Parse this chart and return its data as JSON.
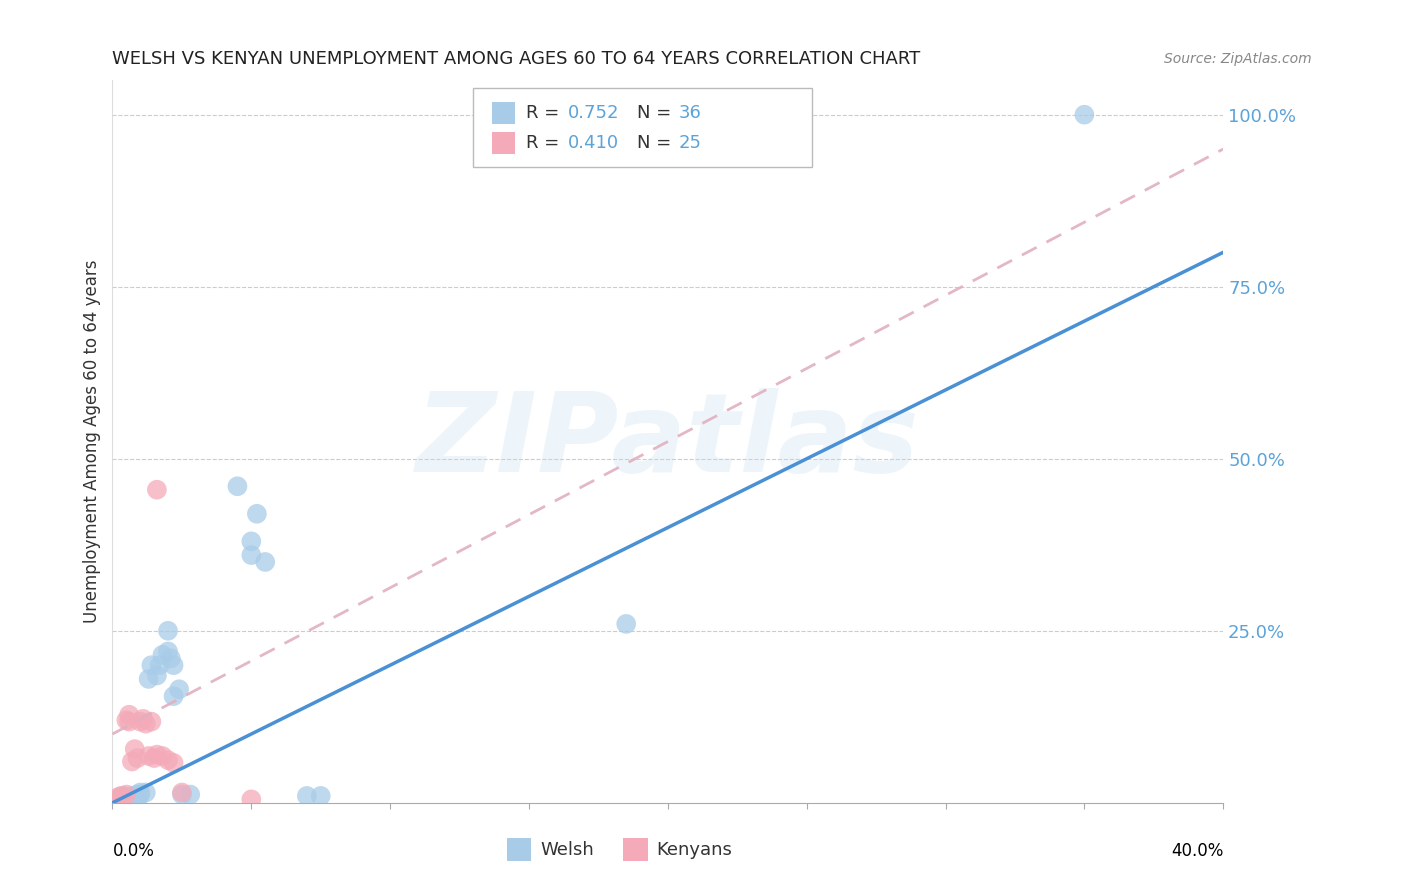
{
  "title": "WELSH VS KENYAN UNEMPLOYMENT AMONG AGES 60 TO 64 YEARS CORRELATION CHART",
  "source": "Source: ZipAtlas.com",
  "ylabel": "Unemployment Among Ages 60 to 64 years",
  "legend_welsh_R": "0.752",
  "legend_welsh_N": "36",
  "legend_kenyan_R": "0.410",
  "legend_kenyan_N": "25",
  "welsh_color": "#a8cce8",
  "kenyan_color": "#f4aab8",
  "welsh_line_color": "#4a90d4",
  "kenyan_line_color": "#e0b0c0",
  "watermark_text": "ZIPatlas",
  "xlim": [
    0.0,
    0.4
  ],
  "ylim": [
    0.0,
    1.05
  ],
  "ytick_values": [
    0.25,
    0.5,
    0.75,
    1.0
  ],
  "ytick_labels": [
    "25.0%",
    "50.0%",
    "75.0%",
    "100.0%"
  ],
  "welsh_line_x": [
    0.0,
    0.4
  ],
  "welsh_line_y": [
    0.0,
    0.8
  ],
  "kenyan_line_x": [
    0.0,
    0.4
  ],
  "kenyan_line_y": [
    0.1,
    0.95
  ],
  "welsh_points": [
    [
      0.002,
      0.005
    ],
    [
      0.003,
      0.008
    ],
    [
      0.004,
      0.003
    ],
    [
      0.004,
      0.01
    ],
    [
      0.005,
      0.004
    ],
    [
      0.005,
      0.008
    ],
    [
      0.006,
      0.006
    ],
    [
      0.007,
      0.01
    ],
    [
      0.008,
      0.008
    ],
    [
      0.009,
      0.004
    ],
    [
      0.009,
      0.012
    ],
    [
      0.01,
      0.015
    ],
    [
      0.01,
      0.012
    ],
    [
      0.012,
      0.015
    ],
    [
      0.013,
      0.18
    ],
    [
      0.014,
      0.2
    ],
    [
      0.016,
      0.185
    ],
    [
      0.017,
      0.2
    ],
    [
      0.018,
      0.215
    ],
    [
      0.02,
      0.22
    ],
    [
      0.02,
      0.25
    ],
    [
      0.021,
      0.21
    ],
    [
      0.022,
      0.155
    ],
    [
      0.022,
      0.2
    ],
    [
      0.024,
      0.165
    ],
    [
      0.025,
      0.012
    ],
    [
      0.028,
      0.012
    ],
    [
      0.045,
      0.46
    ],
    [
      0.05,
      0.36
    ],
    [
      0.05,
      0.38
    ],
    [
      0.052,
      0.42
    ],
    [
      0.055,
      0.35
    ],
    [
      0.07,
      0.01
    ],
    [
      0.075,
      0.01
    ],
    [
      0.185,
      0.26
    ],
    [
      0.35,
      1.0
    ]
  ],
  "kenyan_points": [
    [
      0.002,
      0.004
    ],
    [
      0.002,
      0.008
    ],
    [
      0.003,
      0.004
    ],
    [
      0.003,
      0.01
    ],
    [
      0.004,
      0.008
    ],
    [
      0.005,
      0.012
    ],
    [
      0.005,
      0.12
    ],
    [
      0.006,
      0.118
    ],
    [
      0.006,
      0.128
    ],
    [
      0.007,
      0.06
    ],
    [
      0.008,
      0.078
    ],
    [
      0.009,
      0.065
    ],
    [
      0.01,
      0.118
    ],
    [
      0.011,
      0.122
    ],
    [
      0.012,
      0.115
    ],
    [
      0.013,
      0.068
    ],
    [
      0.014,
      0.118
    ],
    [
      0.015,
      0.065
    ],
    [
      0.016,
      0.07
    ],
    [
      0.016,
      0.455
    ],
    [
      0.018,
      0.068
    ],
    [
      0.02,
      0.062
    ],
    [
      0.022,
      0.058
    ],
    [
      0.025,
      0.015
    ],
    [
      0.05,
      0.005
    ]
  ]
}
